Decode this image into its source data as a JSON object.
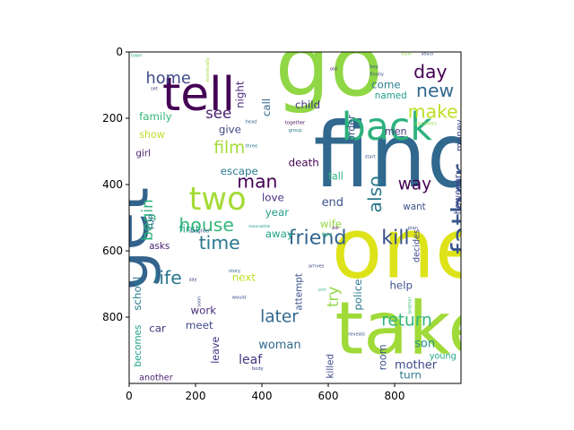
{
  "chart_data": {
    "type": "wordcloud",
    "title": "",
    "xlabel": "",
    "ylabel": "",
    "xlim": [
      0,
      1000
    ],
    "ylim": [
      1000,
      0
    ],
    "x_ticks": [
      0,
      200,
      400,
      600,
      800
    ],
    "y_ticks": [
      0,
      200,
      400,
      600,
      800
    ],
    "x_tick_labels": [
      "0",
      "200",
      "400",
      "600",
      "800"
    ],
    "y_tick_labels": [
      "0",
      "200",
      "400",
      "600",
      "800"
    ],
    "grid": false,
    "legend": "none",
    "words": [
      {
        "text": "go",
        "x": 440,
        "y": 130,
        "size": 260,
        "color": "#8fd744",
        "rotate": 0
      },
      {
        "text": "find",
        "x": 555,
        "y": 405,
        "size": 270,
        "color": "#31688e",
        "rotate": 0
      },
      {
        "text": "one",
        "x": 610,
        "y": 680,
        "size": 250,
        "color": "#dde318",
        "rotate": 0
      },
      {
        "text": "take",
        "x": 620,
        "y": 910,
        "size": 220,
        "color": "#a0da39",
        "rotate": 0
      },
      {
        "text": "get",
        "x": 55,
        "y": 720,
        "size": 190,
        "color": "#33638d",
        "rotate": -90
      },
      {
        "text": "tell",
        "x": 100,
        "y": 175,
        "size": 140,
        "color": "#440154",
        "rotate": 0
      },
      {
        "text": "back",
        "x": 640,
        "y": 265,
        "size": 115,
        "color": "#2db27d",
        "rotate": 0
      },
      {
        "text": "father",
        "x": 1035,
        "y": 610,
        "size": 90,
        "color": "#39568c",
        "rotate": -90
      },
      {
        "text": "two",
        "x": 180,
        "y": 475,
        "size": 95,
        "color": "#a5db36",
        "rotate": 0
      },
      {
        "text": "friend",
        "x": 480,
        "y": 580,
        "size": 60,
        "color": "#33638d",
        "rotate": 0
      },
      {
        "text": "kill",
        "x": 760,
        "y": 580,
        "size": 60,
        "color": "#3b528b",
        "rotate": 0
      },
      {
        "text": "new",
        "x": 865,
        "y": 135,
        "size": 55,
        "color": "#31688e",
        "rotate": 0
      },
      {
        "text": "day",
        "x": 857,
        "y": 78,
        "size": 55,
        "color": "#440154",
        "rotate": 0
      },
      {
        "text": "make",
        "x": 840,
        "y": 198,
        "size": 55,
        "color": "#bddf26",
        "rotate": 0
      },
      {
        "text": "home",
        "x": 50,
        "y": 95,
        "size": 48,
        "color": "#3e4989",
        "rotate": 0
      },
      {
        "text": "house",
        "x": 150,
        "y": 540,
        "size": 55,
        "color": "#35b779",
        "rotate": 0
      },
      {
        "text": "time",
        "x": 210,
        "y": 595,
        "size": 55,
        "color": "#2a788e",
        "rotate": 0
      },
      {
        "text": "man",
        "x": 325,
        "y": 410,
        "size": 55,
        "color": "#440154",
        "rotate": 0
      },
      {
        "text": "life",
        "x": 75,
        "y": 700,
        "size": 55,
        "color": "#2a788e",
        "rotate": 0
      },
      {
        "text": "film",
        "x": 255,
        "y": 305,
        "size": 50,
        "color": "#a5db36",
        "rotate": 0
      },
      {
        "text": "later",
        "x": 395,
        "y": 815,
        "size": 50,
        "color": "#31688e",
        "rotate": 0
      },
      {
        "text": "return",
        "x": 760,
        "y": 825,
        "size": 50,
        "color": "#32b67a",
        "rotate": 0
      },
      {
        "text": "also",
        "x": 760,
        "y": 485,
        "size": 55,
        "color": "#2a788e",
        "rotate": -90
      },
      {
        "text": "way",
        "x": 810,
        "y": 415,
        "size": 50,
        "color": "#440154",
        "rotate": 0
      },
      {
        "text": "begin",
        "x": 70,
        "y": 570,
        "size": 45,
        "color": "#2db27d",
        "rotate": -90
      },
      {
        "text": "see",
        "x": 230,
        "y": 200,
        "size": 45,
        "color": "#481f70",
        "rotate": 0
      },
      {
        "text": "try",
        "x": 630,
        "y": 770,
        "size": 45,
        "color": "#8fd744",
        "rotate": -90
      },
      {
        "text": "night",
        "x": 345,
        "y": 170,
        "size": 32,
        "color": "#482878",
        "rotate": -90
      },
      {
        "text": "call",
        "x": 425,
        "y": 195,
        "size": 32,
        "color": "#31688e",
        "rotate": -90
      },
      {
        "text": "child",
        "x": 500,
        "y": 170,
        "size": 32,
        "color": "#46337e",
        "rotate": 0
      },
      {
        "text": "come",
        "x": 730,
        "y": 110,
        "size": 32,
        "color": "#287c8e",
        "rotate": 0
      },
      {
        "text": "named",
        "x": 740,
        "y": 140,
        "size": 28,
        "color": "#1f9e89",
        "rotate": 0
      },
      {
        "text": "family",
        "x": 30,
        "y": 205,
        "size": 32,
        "color": "#35b779",
        "rotate": 0
      },
      {
        "text": "give",
        "x": 270,
        "y": 245,
        "size": 32,
        "color": "#3e4989",
        "rotate": 0
      },
      {
        "text": "show",
        "x": 30,
        "y": 260,
        "size": 30,
        "color": "#bddf26",
        "rotate": 0
      },
      {
        "text": "girl",
        "x": 20,
        "y": 315,
        "size": 28,
        "color": "#481f70",
        "rotate": 0
      },
      {
        "text": "order",
        "x": 680,
        "y": 270,
        "size": 30,
        "color": "#3b528b",
        "rotate": -90
      },
      {
        "text": "men",
        "x": 770,
        "y": 250,
        "size": 30,
        "color": "#46337e",
        "rotate": 0
      },
      {
        "text": "money",
        "x": 1005,
        "y": 300,
        "size": 28,
        "color": "#3e4989",
        "rotate": -90
      },
      {
        "text": "escape",
        "x": 275,
        "y": 370,
        "size": 32,
        "color": "#2a788e",
        "rotate": 0
      },
      {
        "text": "death",
        "x": 480,
        "y": 345,
        "size": 32,
        "color": "#440154",
        "rotate": 0
      },
      {
        "text": "fall",
        "x": 600,
        "y": 385,
        "size": 30,
        "color": "#2db27d",
        "rotate": 0
      },
      {
        "text": "love",
        "x": 400,
        "y": 450,
        "size": 32,
        "color": "#472d7b",
        "rotate": 0
      },
      {
        "text": "end",
        "x": 580,
        "y": 465,
        "size": 35,
        "color": "#3b528b",
        "rotate": 0
      },
      {
        "text": "want",
        "x": 825,
        "y": 475,
        "size": 28,
        "color": "#3b528b",
        "rotate": 0
      },
      {
        "text": "year",
        "x": 410,
        "y": 495,
        "size": 32,
        "color": "#1f9e89",
        "rotate": 0
      },
      {
        "text": "however",
        "x": 1000,
        "y": 490,
        "size": 28,
        "color": "#3e4989",
        "rotate": -90
      },
      {
        "text": "wife",
        "x": 575,
        "y": 530,
        "size": 32,
        "color": "#93d741",
        "rotate": 0
      },
      {
        "text": "first",
        "x": 150,
        "y": 545,
        "size": 32,
        "color": "#22a884",
        "rotate": 0
      },
      {
        "text": "run",
        "x": 75,
        "y": 535,
        "size": 28,
        "color": "#31688e",
        "rotate": -90
      },
      {
        "text": "asks",
        "x": 60,
        "y": 595,
        "size": 28,
        "color": "#481f70",
        "rotate": 0
      },
      {
        "text": "away",
        "x": 410,
        "y": 560,
        "size": 32,
        "color": "#20a386",
        "rotate": 0
      },
      {
        "text": "decides",
        "x": 875,
        "y": 635,
        "size": 26,
        "color": "#3e4989",
        "rotate": -90
      },
      {
        "text": "school",
        "x": 35,
        "y": 780,
        "size": 32,
        "color": "#287d8e",
        "rotate": -90
      },
      {
        "text": "next",
        "x": 310,
        "y": 690,
        "size": 32,
        "color": "#bddf26",
        "rotate": 0
      },
      {
        "text": "attempt",
        "x": 520,
        "y": 780,
        "size": 28,
        "color": "#3b528b",
        "rotate": -90
      },
      {
        "text": "police",
        "x": 700,
        "y": 780,
        "size": 32,
        "color": "#2a788e",
        "rotate": -90
      },
      {
        "text": "help",
        "x": 785,
        "y": 715,
        "size": 32,
        "color": "#3b528b",
        "rotate": 0
      },
      {
        "text": "work",
        "x": 185,
        "y": 790,
        "size": 32,
        "color": "#472d7b",
        "rotate": 0
      },
      {
        "text": "car",
        "x": 60,
        "y": 845,
        "size": 32,
        "color": "#46337e",
        "rotate": 0
      },
      {
        "text": "meet",
        "x": 170,
        "y": 835,
        "size": 32,
        "color": "#3e4989",
        "rotate": 0
      },
      {
        "text": "becomes",
        "x": 35,
        "y": 950,
        "size": 28,
        "color": "#1f9e89",
        "rotate": -90
      },
      {
        "text": "leave",
        "x": 270,
        "y": 940,
        "size": 30,
        "color": "#46337e",
        "rotate": -90
      },
      {
        "text": "woman",
        "x": 390,
        "y": 895,
        "size": 35,
        "color": "#31688e",
        "rotate": 0
      },
      {
        "text": "leaf",
        "x": 330,
        "y": 940,
        "size": 38,
        "color": "#46337e",
        "rotate": 0
      },
      {
        "text": "killed",
        "x": 615,
        "y": 985,
        "size": 28,
        "color": "#3e4989",
        "rotate": -90
      },
      {
        "text": "room",
        "x": 775,
        "y": 960,
        "size": 30,
        "color": "#3b528b",
        "rotate": -90
      },
      {
        "text": "son",
        "x": 860,
        "y": 890,
        "size": 35,
        "color": "#21918c",
        "rotate": 0
      },
      {
        "text": "young",
        "x": 905,
        "y": 925,
        "size": 26,
        "color": "#20a386",
        "rotate": 0
      },
      {
        "text": "mother",
        "x": 800,
        "y": 955,
        "size": 35,
        "color": "#3e4989",
        "rotate": 0
      },
      {
        "text": "turn",
        "x": 815,
        "y": 985,
        "size": 32,
        "color": "#2a788e",
        "rotate": 0
      },
      {
        "text": "another",
        "x": 30,
        "y": 990,
        "size": 26,
        "color": "#481f70",
        "rotate": 0
      },
      {
        "text": "town",
        "x": 5,
        "y": 15,
        "size": 14,
        "color": "#35b779",
        "rotate": 0
      },
      {
        "text": "set",
        "x": 65,
        "y": 115,
        "size": 14,
        "color": "#3e4989",
        "rotate": 0
      },
      {
        "text": "eventually",
        "x": 240,
        "y": 90,
        "size": 14,
        "color": "#a5db36",
        "rotate": -90
      },
      {
        "text": "head",
        "x": 350,
        "y": 215,
        "size": 14,
        "color": "#31688e",
        "rotate": 0
      },
      {
        "text": "together",
        "x": 470,
        "y": 218,
        "size": 14,
        "color": "#440154",
        "rotate": 0
      },
      {
        "text": "group",
        "x": 480,
        "y": 240,
        "size": 14,
        "color": "#2a788e",
        "rotate": 0
      },
      {
        "text": "old",
        "x": 605,
        "y": 55,
        "size": 14,
        "color": "#481f70",
        "rotate": 0
      },
      {
        "text": "boy",
        "x": 725,
        "y": 48,
        "size": 14,
        "color": "#3b528b",
        "rotate": 0
      },
      {
        "text": "finally",
        "x": 725,
        "y": 72,
        "size": 14,
        "color": "#3e4989",
        "rotate": 0
      },
      {
        "text": "team",
        "x": 820,
        "y": 10,
        "size": 12,
        "color": "#8fd744",
        "rotate": 0
      },
      {
        "text": "attack",
        "x": 880,
        "y": 10,
        "size": 12,
        "color": "#3b528b",
        "rotate": 0
      },
      {
        "text": "three",
        "x": 350,
        "y": 288,
        "size": 14,
        "color": "#2a788e",
        "rotate": 0
      },
      {
        "text": "start",
        "x": 710,
        "y": 320,
        "size": 14,
        "color": "#3b528b",
        "rotate": 0
      },
      {
        "text": "discovers",
        "x": 860,
        "y": 220,
        "size": 14,
        "color": "#8fd744",
        "rotate": 0
      },
      {
        "text": "plan",
        "x": 840,
        "y": 535,
        "size": 14,
        "color": "#3b528b",
        "rotate": 0
      },
      {
        "text": "fight",
        "x": 580,
        "y": 555,
        "size": 14,
        "color": "#2db27d",
        "rotate": 0
      },
      {
        "text": "still",
        "x": 610,
        "y": 535,
        "size": 12,
        "color": "#440154",
        "rotate": 0
      },
      {
        "text": "daughter",
        "x": 180,
        "y": 545,
        "size": 14,
        "color": "#3b528b",
        "rotate": 0
      },
      {
        "text": "meanwhile",
        "x": 360,
        "y": 530,
        "size": 12,
        "color": "#1f9e89",
        "rotate": 0
      },
      {
        "text": "story",
        "x": 300,
        "y": 665,
        "size": 14,
        "color": "#31688e",
        "rotate": 0
      },
      {
        "text": "arrives",
        "x": 540,
        "y": 650,
        "size": 14,
        "color": "#3e4989",
        "rotate": 0
      },
      {
        "text": "say",
        "x": 180,
        "y": 690,
        "size": 14,
        "color": "#481f70",
        "rotate": 0
      },
      {
        "text": "jack",
        "x": 570,
        "y": 720,
        "size": 12,
        "color": "#35b779",
        "rotate": 0
      },
      {
        "text": "soon",
        "x": 215,
        "y": 770,
        "size": 14,
        "color": "#3e4989",
        "rotate": -90
      },
      {
        "text": "would",
        "x": 310,
        "y": 745,
        "size": 14,
        "color": "#3e4989",
        "rotate": 0
      },
      {
        "text": "brother",
        "x": 850,
        "y": 790,
        "size": 14,
        "color": "#35b779",
        "rotate": -90
      },
      {
        "text": "reveals",
        "x": 660,
        "y": 855,
        "size": 14,
        "color": "#3b528b",
        "rotate": 0
      },
      {
        "text": "body",
        "x": 370,
        "y": 960,
        "size": 14,
        "color": "#3e4989",
        "rotate": 0
      }
    ]
  }
}
